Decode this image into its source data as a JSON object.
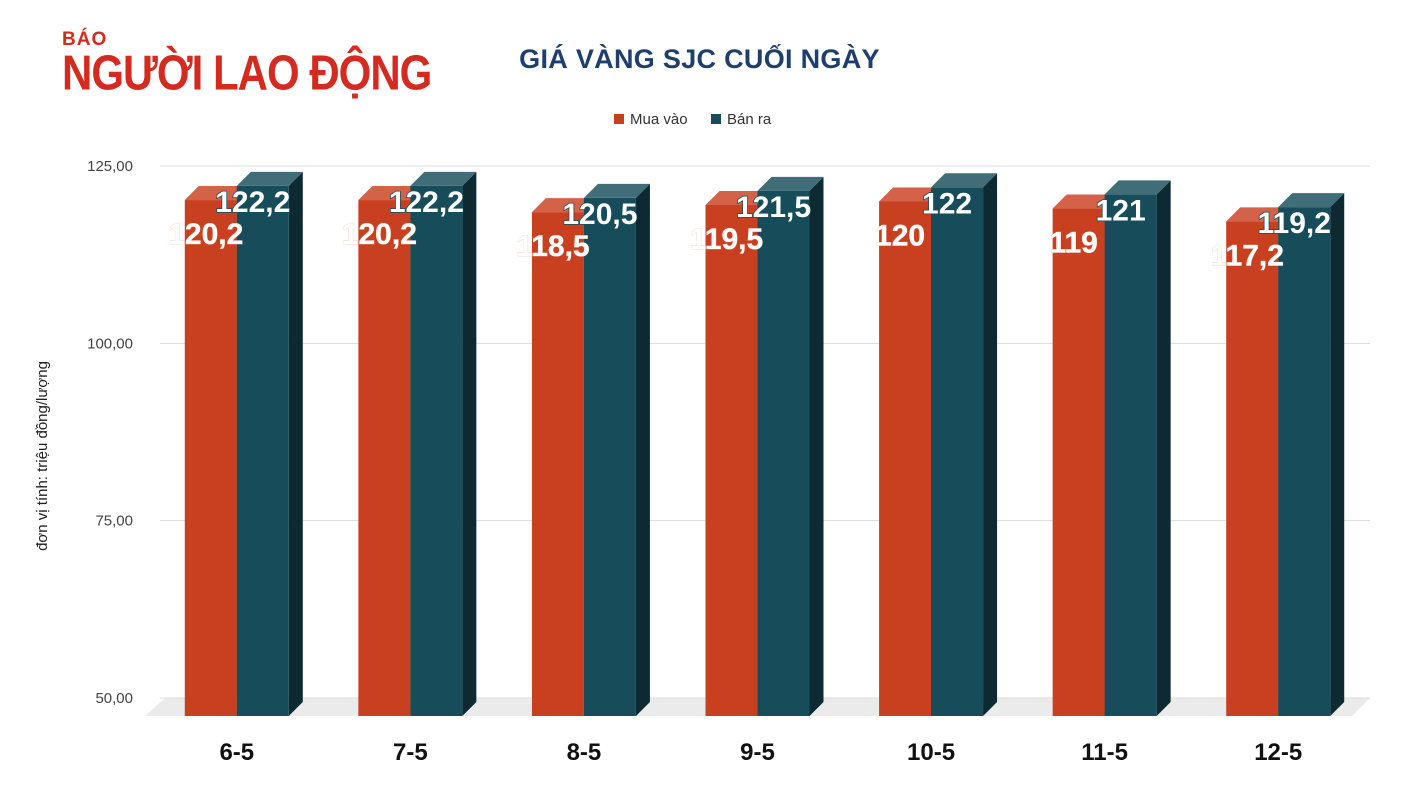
{
  "logo": {
    "small": "BÁO",
    "big": "NGƯỜI LAO ĐỘNG"
  },
  "colors": {
    "buy": "#c94020",
    "sell": "#174d5b",
    "title": "#1e3f6e",
    "logo": "#d42a20"
  },
  "chart_data": {
    "type": "bar",
    "title": "GIÁ VÀNG SJC CUỐI NGÀY",
    "ylabel": "đơn vị tính: triệu đồng/lượng",
    "xlabel": "",
    "categories": [
      "6-5",
      "7-5",
      "8-5",
      "9-5",
      "10-5",
      "11-5",
      "12-5"
    ],
    "series": [
      {
        "name": "Mua vào",
        "values": [
          120.2,
          120.2,
          118.5,
          119.5,
          120,
          119,
          117.2
        ],
        "labels": [
          "120,2",
          "120,2",
          "118,5",
          "119,5",
          "120",
          "119",
          "117,2"
        ]
      },
      {
        "name": "Bán ra",
        "values": [
          122.2,
          122.2,
          120.5,
          121.5,
          122,
          121,
          119.2
        ],
        "labels": [
          "122,2",
          "122,2",
          "120,5",
          "121,5",
          "122",
          "121",
          "119,2"
        ]
      }
    ],
    "ylim": [
      50,
      125
    ],
    "yticks": [
      50,
      75,
      100,
      125
    ],
    "ytick_labels": [
      "50,00",
      "75,00",
      "100,00",
      "125,00"
    ],
    "grid": true,
    "legend": "top-center",
    "bar_style": "3d"
  }
}
